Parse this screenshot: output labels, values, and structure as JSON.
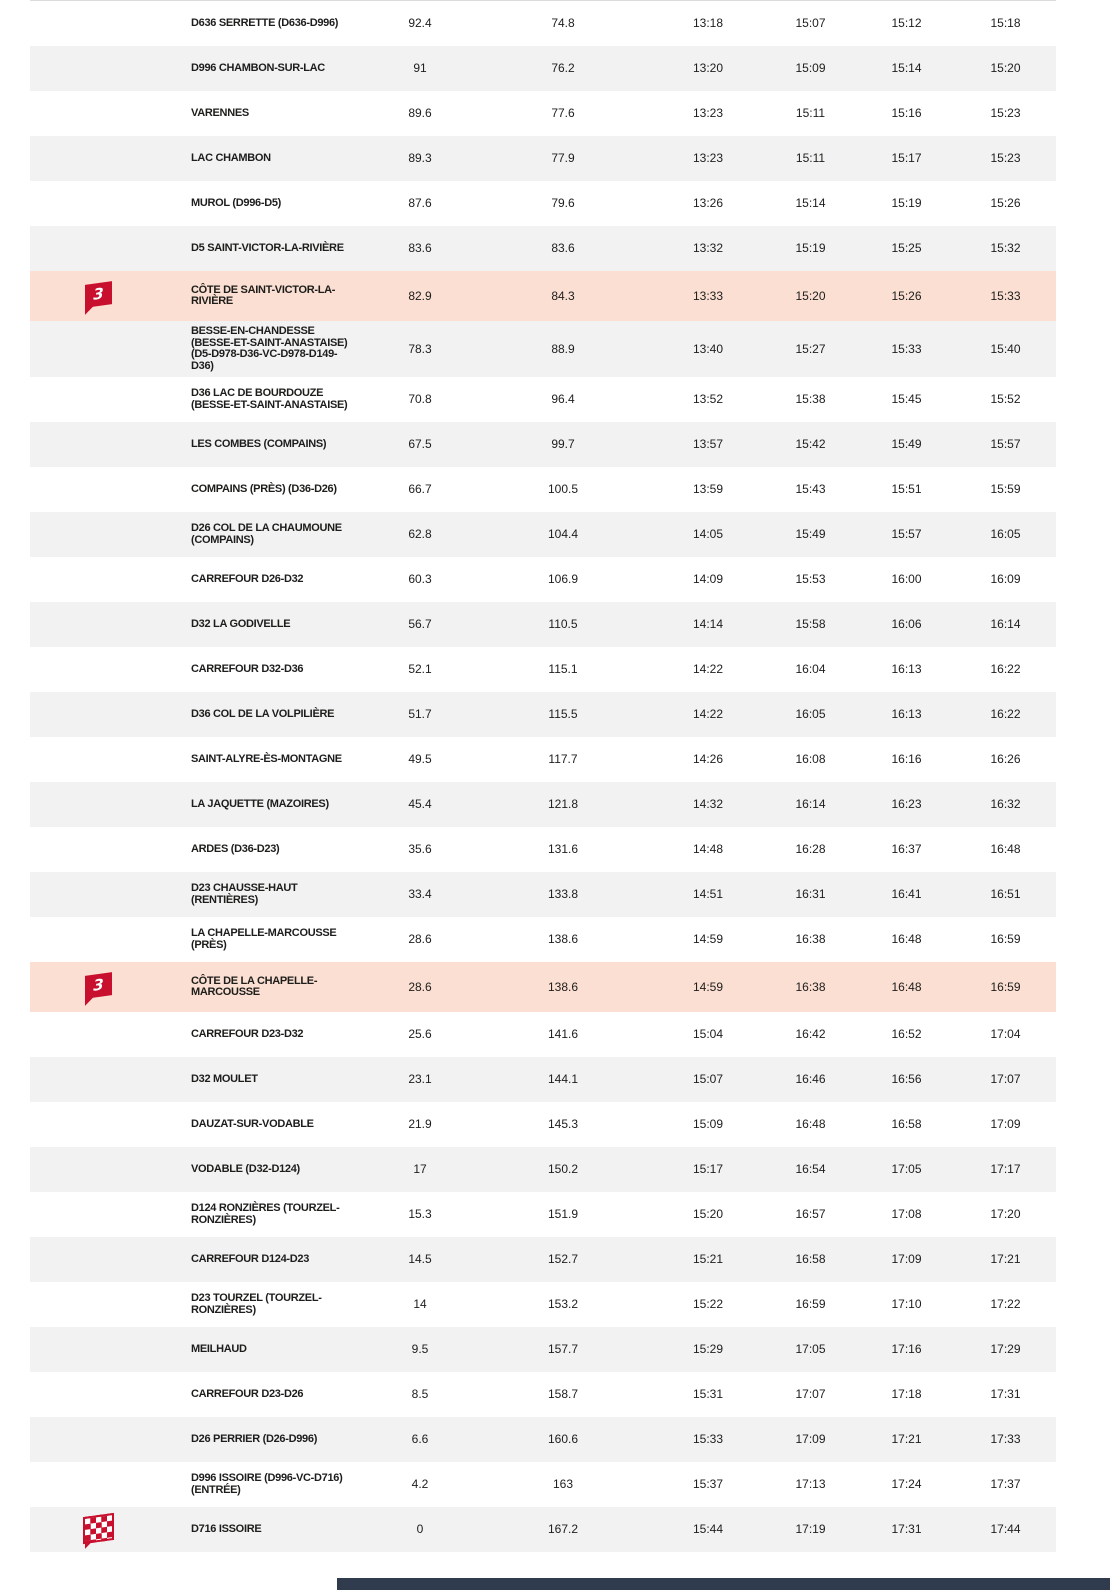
{
  "colors": {
    "row_alternate": "#f2f2f2",
    "row_highlight": "#fbdfd2",
    "flag_red": "#c8102e",
    "text": "#1d1d1b",
    "table_top_border": "#dcdcdc",
    "partial_footer_bar": "#313b4e"
  },
  "icons": {
    "cat3_label": "3",
    "cat3_meaning": "category-3-climb-flag",
    "finish_meaning": "finish-checkered-flag"
  },
  "table": {
    "columns": [
      "marker",
      "location",
      "km_to_go",
      "km_covered",
      "time_1",
      "time_2",
      "time_3",
      "time_4"
    ],
    "rows": [
      {
        "icon": "",
        "highlight": false,
        "name": "D636 SERRETTE (D636-D996)",
        "km_to_go": "92.4",
        "km_covered": "74.8",
        "times": [
          "13:18",
          "15:07",
          "15:12",
          "15:18"
        ]
      },
      {
        "icon": "",
        "highlight": false,
        "name": "D996 CHAMBON-SUR-LAC",
        "km_to_go": "91",
        "km_covered": "76.2",
        "times": [
          "13:20",
          "15:09",
          "15:14",
          "15:20"
        ]
      },
      {
        "icon": "",
        "highlight": false,
        "name": "VARENNES",
        "km_to_go": "89.6",
        "km_covered": "77.6",
        "times": [
          "13:23",
          "15:11",
          "15:16",
          "15:23"
        ]
      },
      {
        "icon": "",
        "highlight": false,
        "name": "LAC CHAMBON",
        "km_to_go": "89.3",
        "km_covered": "77.9",
        "times": [
          "13:23",
          "15:11",
          "15:17",
          "15:23"
        ]
      },
      {
        "icon": "",
        "highlight": false,
        "name": "MUROL (D996-D5)",
        "km_to_go": "87.6",
        "km_covered": "79.6",
        "times": [
          "13:26",
          "15:14",
          "15:19",
          "15:26"
        ]
      },
      {
        "icon": "",
        "highlight": false,
        "name": "D5 SAINT-VICTOR-LA-RIVIÈRE",
        "km_to_go": "83.6",
        "km_covered": "83.6",
        "times": [
          "13:32",
          "15:19",
          "15:25",
          "15:32"
        ]
      },
      {
        "icon": "cat3",
        "highlight": true,
        "name": "CÔTE DE SAINT-VICTOR-LA-RIVIÈRE",
        "km_to_go": "82.9",
        "km_covered": "84.3",
        "times": [
          "13:33",
          "15:20",
          "15:26",
          "15:33"
        ]
      },
      {
        "icon": "",
        "highlight": false,
        "name": "BESSE-EN-CHANDESSE (BESSE-ET-SAINT-ANASTAISE) (D5-D978-D36-VC-D978-D149-D36)",
        "km_to_go": "78.3",
        "km_covered": "88.9",
        "times": [
          "13:40",
          "15:27",
          "15:33",
          "15:40"
        ]
      },
      {
        "icon": "",
        "highlight": false,
        "name": "D36 LAC DE BOURDOUZE (BESSE-ET-SAINT-ANASTAISE)",
        "km_to_go": "70.8",
        "km_covered": "96.4",
        "times": [
          "13:52",
          "15:38",
          "15:45",
          "15:52"
        ]
      },
      {
        "icon": "",
        "highlight": false,
        "name": "LES COMBES (COMPAINS)",
        "km_to_go": "67.5",
        "km_covered": "99.7",
        "times": [
          "13:57",
          "15:42",
          "15:49",
          "15:57"
        ]
      },
      {
        "icon": "",
        "highlight": false,
        "name": "COMPAINS (PRÈS) (D36-D26)",
        "km_to_go": "66.7",
        "km_covered": "100.5",
        "times": [
          "13:59",
          "15:43",
          "15:51",
          "15:59"
        ]
      },
      {
        "icon": "",
        "highlight": false,
        "name": "D26 COL DE LA CHAUMOUNE (COMPAINS)",
        "km_to_go": "62.8",
        "km_covered": "104.4",
        "times": [
          "14:05",
          "15:49",
          "15:57",
          "16:05"
        ]
      },
      {
        "icon": "",
        "highlight": false,
        "name": "CARREFOUR D26-D32",
        "km_to_go": "60.3",
        "km_covered": "106.9",
        "times": [
          "14:09",
          "15:53",
          "16:00",
          "16:09"
        ]
      },
      {
        "icon": "",
        "highlight": false,
        "name": "D32 LA GODIVELLE",
        "km_to_go": "56.7",
        "km_covered": "110.5",
        "times": [
          "14:14",
          "15:58",
          "16:06",
          "16:14"
        ]
      },
      {
        "icon": "",
        "highlight": false,
        "name": "CARREFOUR D32-D36",
        "km_to_go": "52.1",
        "km_covered": "115.1",
        "times": [
          "14:22",
          "16:04",
          "16:13",
          "16:22"
        ]
      },
      {
        "icon": "",
        "highlight": false,
        "name": "D36 COL DE LA VOLPILIÈRE",
        "km_to_go": "51.7",
        "km_covered": "115.5",
        "times": [
          "14:22",
          "16:05",
          "16:13",
          "16:22"
        ]
      },
      {
        "icon": "",
        "highlight": false,
        "name": "SAINT-ALYRE-ÈS-MONTAGNE",
        "km_to_go": "49.5",
        "km_covered": "117.7",
        "times": [
          "14:26",
          "16:08",
          "16:16",
          "16:26"
        ]
      },
      {
        "icon": "",
        "highlight": false,
        "name": "LA JAQUETTE (MAZOIRES)",
        "km_to_go": "45.4",
        "km_covered": "121.8",
        "times": [
          "14:32",
          "16:14",
          "16:23",
          "16:32"
        ]
      },
      {
        "icon": "",
        "highlight": false,
        "name": "ARDES (D36-D23)",
        "km_to_go": "35.6",
        "km_covered": "131.6",
        "times": [
          "14:48",
          "16:28",
          "16:37",
          "16:48"
        ]
      },
      {
        "icon": "",
        "highlight": false,
        "name": "D23 CHAUSSE-HAUT (RENTIÈRES)",
        "km_to_go": "33.4",
        "km_covered": "133.8",
        "times": [
          "14:51",
          "16:31",
          "16:41",
          "16:51"
        ]
      },
      {
        "icon": "",
        "highlight": false,
        "name": "LA CHAPELLE-MARCOUSSE (PRÈS)",
        "km_to_go": "28.6",
        "km_covered": "138.6",
        "times": [
          "14:59",
          "16:38",
          "16:48",
          "16:59"
        ]
      },
      {
        "icon": "cat3",
        "highlight": true,
        "name": "CÔTE DE LA CHAPELLE-MARCOUSSE",
        "km_to_go": "28.6",
        "km_covered": "138.6",
        "times": [
          "14:59",
          "16:38",
          "16:48",
          "16:59"
        ]
      },
      {
        "icon": "",
        "highlight": false,
        "name": "CARREFOUR D23-D32",
        "km_to_go": "25.6",
        "km_covered": "141.6",
        "times": [
          "15:04",
          "16:42",
          "16:52",
          "17:04"
        ]
      },
      {
        "icon": "",
        "highlight": false,
        "name": "D32 MOULET",
        "km_to_go": "23.1",
        "km_covered": "144.1",
        "times": [
          "15:07",
          "16:46",
          "16:56",
          "17:07"
        ]
      },
      {
        "icon": "",
        "highlight": false,
        "name": "DAUZAT-SUR-VODABLE",
        "km_to_go": "21.9",
        "km_covered": "145.3",
        "times": [
          "15:09",
          "16:48",
          "16:58",
          "17:09"
        ]
      },
      {
        "icon": "",
        "highlight": false,
        "name": "VODABLE (D32-D124)",
        "km_to_go": "17",
        "km_covered": "150.2",
        "times": [
          "15:17",
          "16:54",
          "17:05",
          "17:17"
        ]
      },
      {
        "icon": "",
        "highlight": false,
        "name": "D124 RONZIÈRES (TOURZEL-RONZIÈRES)",
        "km_to_go": "15.3",
        "km_covered": "151.9",
        "times": [
          "15:20",
          "16:57",
          "17:08",
          "17:20"
        ]
      },
      {
        "icon": "",
        "highlight": false,
        "name": "CARREFOUR D124-D23",
        "km_to_go": "14.5",
        "km_covered": "152.7",
        "times": [
          "15:21",
          "16:58",
          "17:09",
          "17:21"
        ]
      },
      {
        "icon": "",
        "highlight": false,
        "name": "D23 TOURZEL (TOURZEL-RONZIÈRES)",
        "km_to_go": "14",
        "km_covered": "153.2",
        "times": [
          "15:22",
          "16:59",
          "17:10",
          "17:22"
        ]
      },
      {
        "icon": "",
        "highlight": false,
        "name": "MEILHAUD",
        "km_to_go": "9.5",
        "km_covered": "157.7",
        "times": [
          "15:29",
          "17:05",
          "17:16",
          "17:29"
        ]
      },
      {
        "icon": "",
        "highlight": false,
        "name": "CARREFOUR D23-D26",
        "km_to_go": "8.5",
        "km_covered": "158.7",
        "times": [
          "15:31",
          "17:07",
          "17:18",
          "17:31"
        ]
      },
      {
        "icon": "",
        "highlight": false,
        "name": "D26 PERRIER (D26-D996)",
        "km_to_go": "6.6",
        "km_covered": "160.6",
        "times": [
          "15:33",
          "17:09",
          "17:21",
          "17:33"
        ]
      },
      {
        "icon": "",
        "highlight": false,
        "name": "D996 ISSOIRE (D996-VC-D716) (ENTRÉE)",
        "km_to_go": "4.2",
        "km_covered": "163",
        "times": [
          "15:37",
          "17:13",
          "17:24",
          "17:37"
        ]
      },
      {
        "icon": "finish",
        "highlight": false,
        "name": "D716 ISSOIRE",
        "km_to_go": "0",
        "km_covered": "167.2",
        "times": [
          "15:44",
          "17:19",
          "17:31",
          "17:44"
        ]
      }
    ]
  }
}
